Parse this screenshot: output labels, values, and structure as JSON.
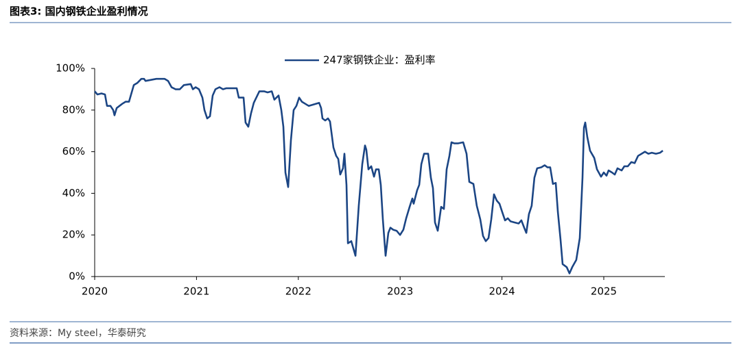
{
  "chart_data": {
    "type": "line",
    "title": "图表3:  国内钢铁企业盈利情况",
    "source": "资料来源：My steel，华泰研究",
    "x": [
      2020.0,
      2020.027,
      2020.067,
      2020.101,
      2020.121,
      2020.155,
      2020.182,
      2020.195,
      2020.216,
      2020.27,
      2020.303,
      2020.337,
      2020.384,
      2020.418,
      2020.458,
      2020.485,
      2020.499,
      2020.553,
      2020.606,
      2020.687,
      2020.721,
      2020.755,
      2020.795,
      2020.836,
      2020.876,
      2020.943,
      2020.964,
      2020.991,
      2021.024,
      2021.058,
      2021.078,
      2021.105,
      2021.132,
      2021.159,
      2021.186,
      2021.226,
      2021.26,
      2021.294,
      2021.395,
      2021.415,
      2021.462,
      2021.482,
      2021.509,
      2021.536,
      2021.563,
      2021.617,
      2021.664,
      2021.698,
      2021.739,
      2021.765,
      2021.806,
      2021.833,
      2021.853,
      2021.873,
      2021.9,
      2021.927,
      2021.954,
      2021.981,
      2022.008,
      2022.035,
      2022.069,
      2022.102,
      2022.136,
      2022.17,
      2022.204,
      2022.224,
      2022.237,
      2022.264,
      2022.291,
      2022.311,
      2022.345,
      2022.372,
      2022.392,
      2022.412,
      2022.439,
      2022.453,
      2022.473,
      2022.487,
      2022.52,
      2022.561,
      2022.594,
      2022.628,
      2022.655,
      2022.668,
      2022.689,
      2022.716,
      2022.743,
      2022.763,
      2022.79,
      2022.81,
      2022.83,
      2022.857,
      2022.884,
      2022.904,
      2022.931,
      2022.965,
      2022.999,
      2023.032,
      2023.059,
      2023.093,
      2023.12,
      2023.133,
      2023.167,
      2023.187,
      2023.208,
      2023.235,
      2023.275,
      2023.302,
      2023.322,
      2023.342,
      2023.369,
      2023.403,
      2023.43,
      2023.457,
      2023.484,
      2023.504,
      2023.531,
      2023.571,
      2023.619,
      2023.652,
      2023.679,
      2023.72,
      2023.753,
      2023.787,
      2023.814,
      2023.841,
      2023.868,
      2023.895,
      2023.922,
      2023.949,
      2023.976,
      2024.003,
      2024.03,
      2024.057,
      2024.084,
      2024.124,
      2024.164,
      2024.191,
      2024.218,
      2024.239,
      2024.265,
      2024.292,
      2024.319,
      2024.346,
      2024.387,
      2024.42,
      2024.447,
      2024.474,
      2024.501,
      2024.528,
      2024.549,
      2024.575,
      2024.596,
      2024.636,
      2024.663,
      2024.69,
      2024.73,
      2024.764,
      2024.791,
      2024.805,
      2024.818,
      2024.838,
      2024.865,
      2024.906,
      2024.933,
      2024.973,
      2025.0,
      2025.027,
      2025.047,
      2025.081,
      2025.108,
      2025.135,
      2025.175,
      2025.202,
      2025.236,
      2025.27,
      2025.303,
      2025.337,
      2025.371,
      2025.404,
      2025.438,
      2025.472,
      2025.512,
      2025.553,
      2025.58
    ],
    "xlim": [
      2020,
      2025.6
    ],
    "xticks": [
      2020,
      2021,
      2022,
      2023,
      2024,
      2025
    ],
    "ylim": [
      0,
      100
    ],
    "yticks": [
      {
        "value": 0,
        "label": "0%"
      },
      {
        "value": 20,
        "label": "20%"
      },
      {
        "value": 40,
        "label": "40%"
      },
      {
        "value": 60,
        "label": "60%"
      },
      {
        "value": 80,
        "label": "80%"
      },
      {
        "value": 100,
        "label": "100%"
      }
    ],
    "series": [
      {
        "name": "247家钢铁企业：盈利率",
        "color": "#1b4584",
        "values": [
          89,
          87.5,
          88,
          87.5,
          82,
          82,
          80,
          77.5,
          81,
          83,
          84,
          84,
          92,
          93,
          95,
          95,
          94,
          94.5,
          95,
          95,
          94,
          91,
          90,
          90,
          92,
          92.5,
          90,
          91,
          90,
          86,
          80,
          76,
          77,
          87,
          90,
          91,
          90,
          90.5,
          90.5,
          86,
          86,
          74,
          72,
          78.5,
          83.5,
          89,
          89,
          88.5,
          89,
          85,
          87,
          80,
          72,
          50,
          43,
          65.5,
          80,
          82,
          86,
          84,
          83,
          82,
          82.5,
          83,
          83.5,
          81,
          76,
          75,
          76,
          74.5,
          62,
          58,
          56.5,
          49,
          52,
          59,
          44,
          16,
          17,
          10,
          34,
          54,
          63,
          61,
          51.5,
          53,
          48,
          51.5,
          51.5,
          44,
          27.5,
          10,
          21,
          23.5,
          22.5,
          22,
          20,
          22.5,
          28,
          33.5,
          37.5,
          35,
          41.5,
          44,
          54,
          59,
          59,
          47.5,
          42.5,
          26,
          22,
          33.5,
          32.5,
          51.5,
          58,
          64.5,
          64,
          64,
          64.5,
          59,
          45.5,
          44.5,
          34,
          27.5,
          19.5,
          17,
          18.5,
          27.5,
          39.5,
          36.5,
          35,
          31,
          27,
          28,
          26.5,
          26,
          25.5,
          27,
          23.5,
          21,
          30,
          34,
          47.5,
          52,
          52.5,
          53.5,
          52.5,
          52.5,
          44.5,
          45,
          31,
          18,
          6,
          4.5,
          1.5,
          4.5,
          8,
          18.5,
          47.5,
          71.5,
          74,
          67,
          60.5,
          57,
          51.5,
          48,
          50,
          48.5,
          51,
          50,
          49,
          52,
          51,
          53,
          53,
          55,
          54.5,
          58,
          59,
          60,
          59,
          59.5,
          59,
          59.5,
          60.5
        ]
      }
    ]
  }
}
